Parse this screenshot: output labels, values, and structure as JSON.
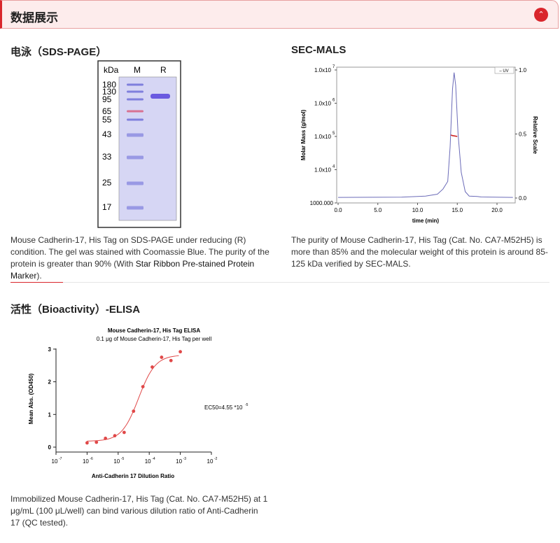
{
  "header": {
    "title": "数据展示",
    "collapse_icon": "chevron-up-icon",
    "accent": "#d9262c"
  },
  "sds": {
    "title": "电泳（SDS-PAGE）",
    "unit": "kDa",
    "lanes": [
      "M",
      "R"
    ],
    "markers": [
      "180",
      "130",
      "95",
      "65",
      "55",
      "43",
      "33",
      "25",
      "17"
    ],
    "caption_pre": "Mouse Cadherin-17, His Tag on SDS-PAGE under reducing (R) condition. The gel was stained with Coomassie Blue. The purity of the protein is greater than 90% (With ",
    "caption_link": "Star Ribbon Pre-stained Protein Marker",
    "caption_post": ")."
  },
  "sec": {
    "title": "SEC-MALS",
    "caption": "The purity of Mouse Cadherin-17, His Tag (Cat. No. CA7-M52H5) is more than 85% and the molecular weight of this protein is around 85-125 kDa verified by SEC-MALS."
  },
  "elisa": {
    "title": "活性（Bioactivity）-ELISA",
    "caption": "Immobilized Mouse Cadherin-17, His Tag (Cat. No. CA7-M52H5) at 1 μg/mL (100 μL/well) can bind various dilution ratio of Anti-Cadherin 17 (QC tested)."
  },
  "chart_data": [
    {
      "type": "line",
      "xlabel": "time (min)",
      "ylabel": "Molar Mass (g/mol)",
      "y2label": "Relative Scale",
      "xlim": [
        0,
        22
      ],
      "xticks": [
        "0.0",
        "5.0",
        "10.0",
        "15.0",
        "20.0"
      ],
      "yscale": "log",
      "ylim": [
        1000,
        10000000
      ],
      "yticks": [
        "1000.000",
        "1.0x10^4",
        "1.0x10^5",
        "1.0x10^6",
        "1.0x10^7"
      ],
      "y2lim": [
        0,
        1
      ],
      "y2ticks": [
        "0.0",
        "0.5",
        "1.0"
      ],
      "legend": "UV",
      "legend_position": "top-right",
      "series": [
        {
          "name": "UV",
          "color": "#6b6bb8",
          "axis": "right",
          "x": [
            0,
            8,
            11,
            12.5,
            13.2,
            13.8,
            14.1,
            14.4,
            14.6,
            14.8,
            15.1,
            15.5,
            16,
            16.5,
            17.5,
            18,
            22
          ],
          "y": [
            0.005,
            0.007,
            0.015,
            0.03,
            0.07,
            0.13,
            0.4,
            0.85,
            0.98,
            0.88,
            0.5,
            0.2,
            0.05,
            0.015,
            0.012,
            0.008,
            0.005
          ]
        },
        {
          "color": "#cc2222",
          "axis": "left",
          "x": [
            14.2,
            14.4,
            14.6,
            14.8,
            15.0
          ],
          "y": [
            110000,
            106000,
            104000,
            102000,
            100000
          ]
        }
      ]
    },
    {
      "type": "scatter",
      "title": "Mouse Cadherin-17, His Tag ELISA",
      "subtitle": "0.1 μg of Mouse Cadherin-17, His Tag per well",
      "xlabel": "Anti-Cadherin 17 Dilution Ratio",
      "ylabel": "Mean Abs. (OD450)",
      "xscale": "log",
      "xlim": [
        1e-07,
        0.01
      ],
      "xticks": [
        "-7",
        "-6",
        "-5",
        "-4",
        "-3",
        "-2"
      ],
      "ylim": [
        0,
        3
      ],
      "yticks": [
        "0",
        "1",
        "2",
        "3"
      ],
      "color": "#e04848",
      "annotation": "EC50=4.55 *10",
      "annotation_exp": "-5",
      "x": [
        1e-06,
        2e-06,
        3.9e-06,
        7.8e-06,
        1.56e-05,
        3.125e-05,
        6.25e-05,
        0.000125,
        0.00025,
        0.0005,
        0.001
      ],
      "y": [
        0.13,
        0.15,
        0.27,
        0.35,
        0.45,
        1.1,
        1.85,
        2.45,
        2.75,
        2.65,
        2.92
      ],
      "fit": {
        "bottom": 0.18,
        "top": 2.82,
        "ec50": 4.55e-05,
        "hill": 1.6
      }
    }
  ]
}
